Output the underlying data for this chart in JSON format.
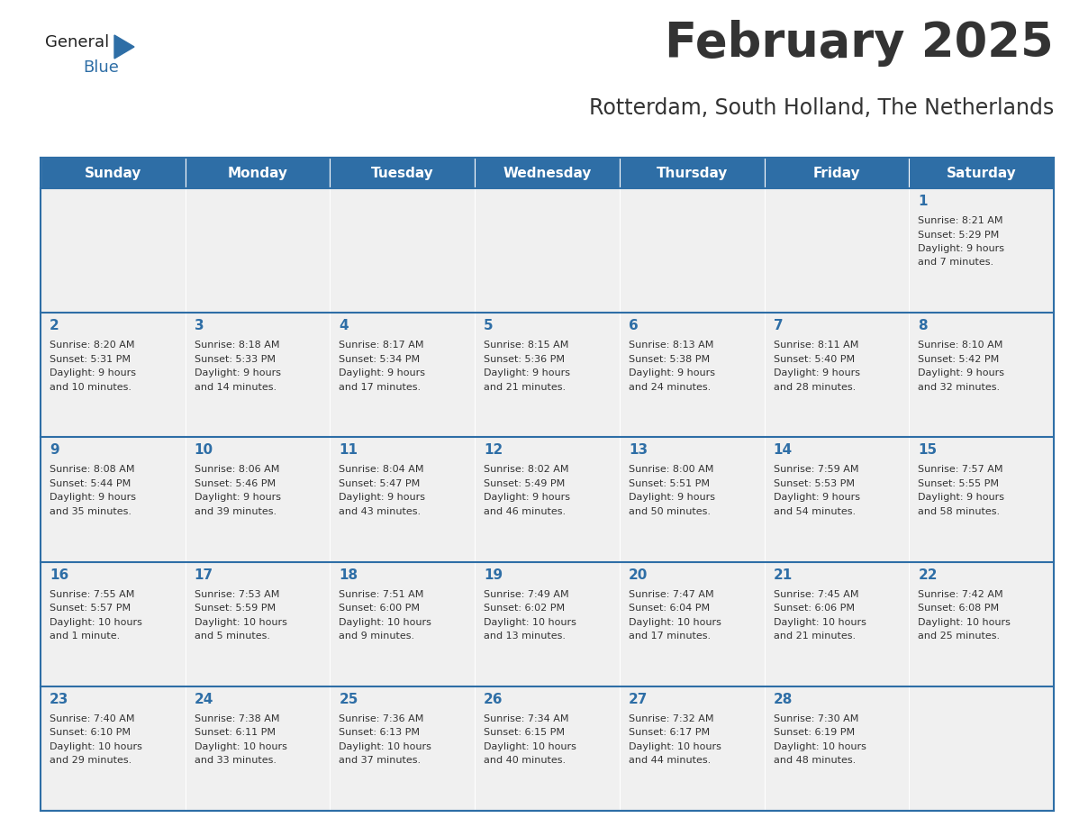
{
  "title": "February 2025",
  "subtitle": "Rotterdam, South Holland, The Netherlands",
  "header_color": "#2E6EA6",
  "header_text_color": "#FFFFFF",
  "cell_bg": "#F0F0F0",
  "day_number_color": "#2E6EA6",
  "info_text_color": "#333333",
  "border_color": "#2E6EA6",
  "days_of_week": [
    "Sunday",
    "Monday",
    "Tuesday",
    "Wednesday",
    "Thursday",
    "Friday",
    "Saturday"
  ],
  "calendar_data": [
    {
      "day": 1,
      "col": 6,
      "row": 0,
      "sunrise": "8:21 AM",
      "sunset": "5:29 PM",
      "daylight": "9 hours\nand 7 minutes."
    },
    {
      "day": 2,
      "col": 0,
      "row": 1,
      "sunrise": "8:20 AM",
      "sunset": "5:31 PM",
      "daylight": "9 hours\nand 10 minutes."
    },
    {
      "day": 3,
      "col": 1,
      "row": 1,
      "sunrise": "8:18 AM",
      "sunset": "5:33 PM",
      "daylight": "9 hours\nand 14 minutes."
    },
    {
      "day": 4,
      "col": 2,
      "row": 1,
      "sunrise": "8:17 AM",
      "sunset": "5:34 PM",
      "daylight": "9 hours\nand 17 minutes."
    },
    {
      "day": 5,
      "col": 3,
      "row": 1,
      "sunrise": "8:15 AM",
      "sunset": "5:36 PM",
      "daylight": "9 hours\nand 21 minutes."
    },
    {
      "day": 6,
      "col": 4,
      "row": 1,
      "sunrise": "8:13 AM",
      "sunset": "5:38 PM",
      "daylight": "9 hours\nand 24 minutes."
    },
    {
      "day": 7,
      "col": 5,
      "row": 1,
      "sunrise": "8:11 AM",
      "sunset": "5:40 PM",
      "daylight": "9 hours\nand 28 minutes."
    },
    {
      "day": 8,
      "col": 6,
      "row": 1,
      "sunrise": "8:10 AM",
      "sunset": "5:42 PM",
      "daylight": "9 hours\nand 32 minutes."
    },
    {
      "day": 9,
      "col": 0,
      "row": 2,
      "sunrise": "8:08 AM",
      "sunset": "5:44 PM",
      "daylight": "9 hours\nand 35 minutes."
    },
    {
      "day": 10,
      "col": 1,
      "row": 2,
      "sunrise": "8:06 AM",
      "sunset": "5:46 PM",
      "daylight": "9 hours\nand 39 minutes."
    },
    {
      "day": 11,
      "col": 2,
      "row": 2,
      "sunrise": "8:04 AM",
      "sunset": "5:47 PM",
      "daylight": "9 hours\nand 43 minutes."
    },
    {
      "day": 12,
      "col": 3,
      "row": 2,
      "sunrise": "8:02 AM",
      "sunset": "5:49 PM",
      "daylight": "9 hours\nand 46 minutes."
    },
    {
      "day": 13,
      "col": 4,
      "row": 2,
      "sunrise": "8:00 AM",
      "sunset": "5:51 PM",
      "daylight": "9 hours\nand 50 minutes."
    },
    {
      "day": 14,
      "col": 5,
      "row": 2,
      "sunrise": "7:59 AM",
      "sunset": "5:53 PM",
      "daylight": "9 hours\nand 54 minutes."
    },
    {
      "day": 15,
      "col": 6,
      "row": 2,
      "sunrise": "7:57 AM",
      "sunset": "5:55 PM",
      "daylight": "9 hours\nand 58 minutes."
    },
    {
      "day": 16,
      "col": 0,
      "row": 3,
      "sunrise": "7:55 AM",
      "sunset": "5:57 PM",
      "daylight": "10 hours\nand 1 minute."
    },
    {
      "day": 17,
      "col": 1,
      "row": 3,
      "sunrise": "7:53 AM",
      "sunset": "5:59 PM",
      "daylight": "10 hours\nand 5 minutes."
    },
    {
      "day": 18,
      "col": 2,
      "row": 3,
      "sunrise": "7:51 AM",
      "sunset": "6:00 PM",
      "daylight": "10 hours\nand 9 minutes."
    },
    {
      "day": 19,
      "col": 3,
      "row": 3,
      "sunrise": "7:49 AM",
      "sunset": "6:02 PM",
      "daylight": "10 hours\nand 13 minutes."
    },
    {
      "day": 20,
      "col": 4,
      "row": 3,
      "sunrise": "7:47 AM",
      "sunset": "6:04 PM",
      "daylight": "10 hours\nand 17 minutes."
    },
    {
      "day": 21,
      "col": 5,
      "row": 3,
      "sunrise": "7:45 AM",
      "sunset": "6:06 PM",
      "daylight": "10 hours\nand 21 minutes."
    },
    {
      "day": 22,
      "col": 6,
      "row": 3,
      "sunrise": "7:42 AM",
      "sunset": "6:08 PM",
      "daylight": "10 hours\nand 25 minutes."
    },
    {
      "day": 23,
      "col": 0,
      "row": 4,
      "sunrise": "7:40 AM",
      "sunset": "6:10 PM",
      "daylight": "10 hours\nand 29 minutes."
    },
    {
      "day": 24,
      "col": 1,
      "row": 4,
      "sunrise": "7:38 AM",
      "sunset": "6:11 PM",
      "daylight": "10 hours\nand 33 minutes."
    },
    {
      "day": 25,
      "col": 2,
      "row": 4,
      "sunrise": "7:36 AM",
      "sunset": "6:13 PM",
      "daylight": "10 hours\nand 37 minutes."
    },
    {
      "day": 26,
      "col": 3,
      "row": 4,
      "sunrise": "7:34 AM",
      "sunset": "6:15 PM",
      "daylight": "10 hours\nand 40 minutes."
    },
    {
      "day": 27,
      "col": 4,
      "row": 4,
      "sunrise": "7:32 AM",
      "sunset": "6:17 PM",
      "daylight": "10 hours\nand 44 minutes."
    },
    {
      "day": 28,
      "col": 5,
      "row": 4,
      "sunrise": "7:30 AM",
      "sunset": "6:19 PM",
      "daylight": "10 hours\nand 48 minutes."
    }
  ],
  "logo_general_color": "#222222",
  "logo_blue_color": "#2E6EA6",
  "n_rows": 5,
  "n_cols": 7,
  "fig_width": 11.88,
  "fig_height": 9.18,
  "title_fontsize": 38,
  "subtitle_fontsize": 17,
  "header_fontsize": 11,
  "day_num_fontsize": 11,
  "info_fontsize": 8
}
